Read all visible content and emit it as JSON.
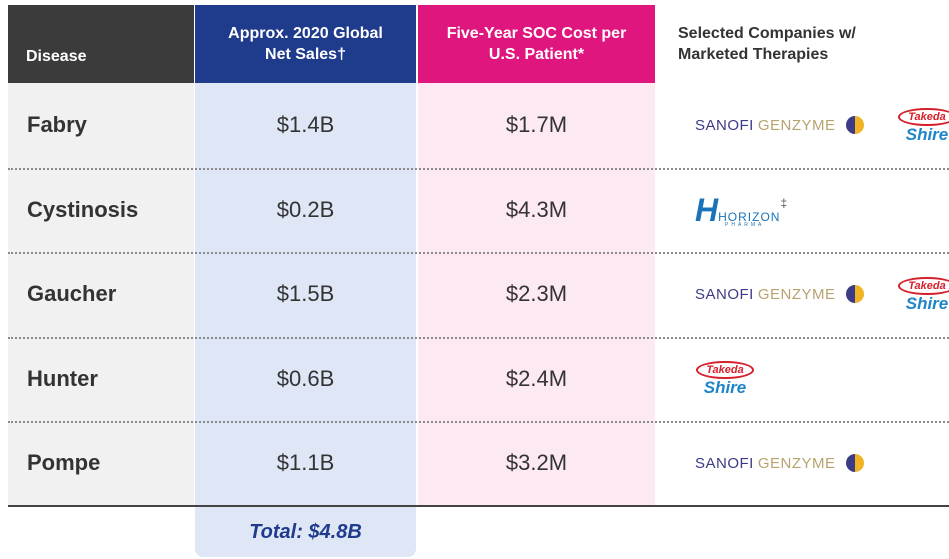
{
  "table": {
    "header": [
      "Disease",
      "Approx. 2020 Global Net Sales†",
      "Five-Year SOC Cost per U.S. Patient*",
      "Selected Companies w/ Marketed Therapies"
    ],
    "rows": [
      {
        "disease": "Fabry",
        "sales": "$1.4B",
        "cost": "$1.7M",
        "companies": [
          {
            "style": "sanofi",
            "words": [
              "SANOFI",
              "GENZYME"
            ]
          },
          {
            "style": "takeda",
            "words": [
              "Takeda",
              "Shire"
            ]
          }
        ]
      },
      {
        "disease": "Cystinosis",
        "sales": "$0.2B",
        "cost": "$4.3M",
        "companies": [
          {
            "style": "horizon",
            "words": [
              "HORIZON",
              "PHARMA",
              "‡"
            ]
          }
        ]
      },
      {
        "disease": "Gaucher",
        "sales": "$1.5B",
        "cost": "$2.3M",
        "companies": [
          {
            "style": "sanofi",
            "words": [
              "SANOFI",
              "GENZYME"
            ]
          },
          {
            "style": "takeda",
            "words": [
              "Takeda",
              "Shire"
            ]
          }
        ]
      },
      {
        "disease": "Hunter",
        "sales": "$0.6B",
        "cost": "$2.4M",
        "companies": [
          {
            "style": "takeda",
            "words": [
              "Takeda",
              "Shire"
            ]
          }
        ]
      },
      {
        "disease": "Pompe",
        "sales": "$1.1B",
        "cost": "$3.2M",
        "companies": [
          {
            "style": "sanofi",
            "words": [
              "SANOFI",
              "GENZYME"
            ]
          }
        ]
      }
    ],
    "total": "Total: $4.8B"
  }
}
